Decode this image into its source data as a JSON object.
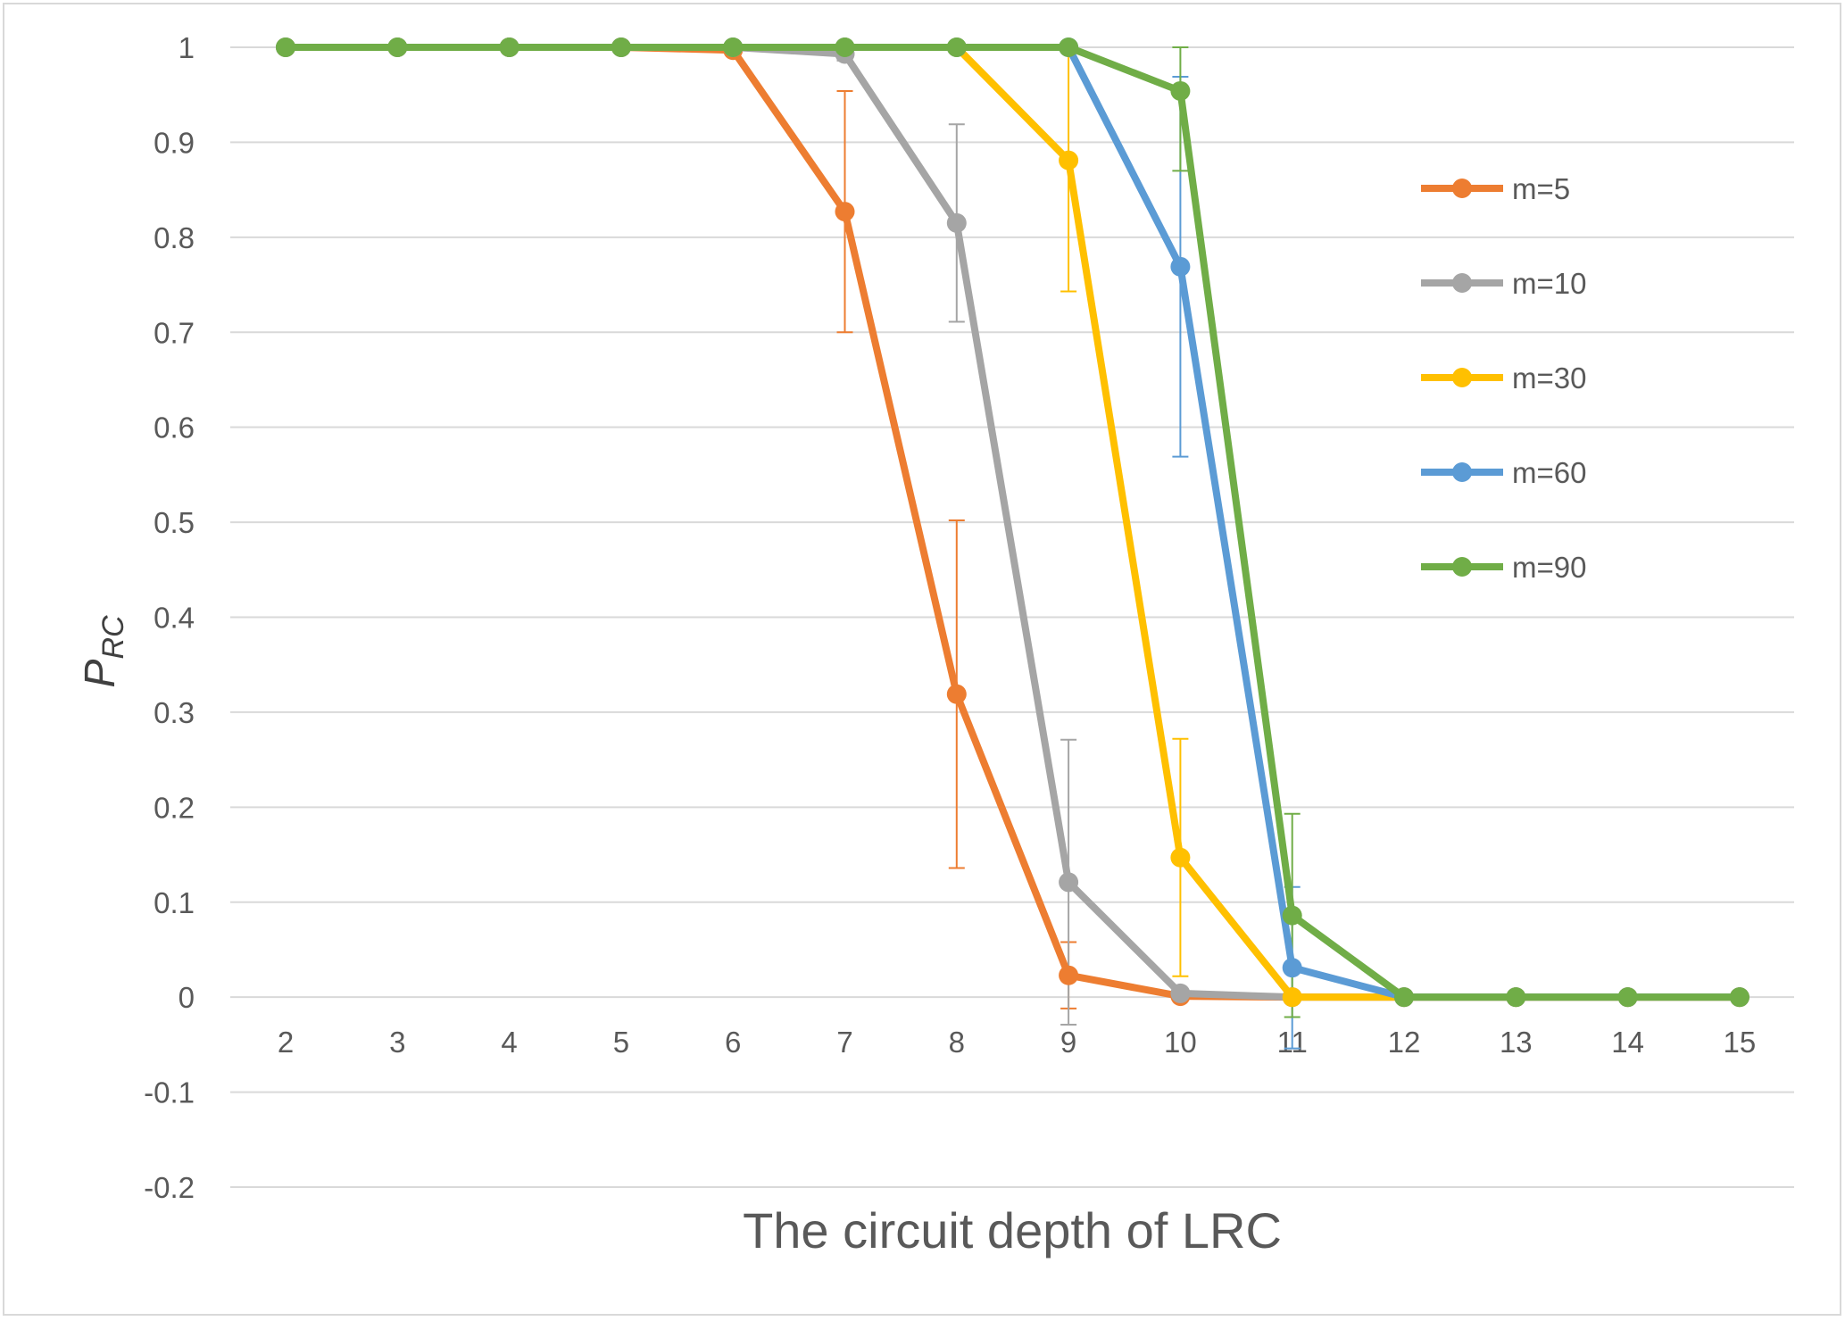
{
  "chart_data": {
    "type": "line",
    "title": "",
    "xlabel": "The circuit depth of LRC",
    "ylabel": {
      "main": "P",
      "sub": "RC"
    },
    "x": [
      2,
      3,
      4,
      5,
      6,
      7,
      8,
      9,
      10,
      11,
      12,
      13,
      14,
      15
    ],
    "xlim": [
      1.5,
      15.5
    ],
    "ylim": [
      -0.2,
      1.0
    ],
    "yticks": [
      "-0.2",
      "-0.1",
      "0",
      "0.1",
      "0.2",
      "0.3",
      "0.4",
      "0.5",
      "0.6",
      "0.7",
      "0.8",
      "0.9",
      "1"
    ],
    "ytick_values": [
      -0.2,
      -0.1,
      0,
      0.1,
      0.2,
      0.3,
      0.4,
      0.5,
      0.6,
      0.7,
      0.8,
      0.9,
      1.0
    ],
    "grid": true,
    "legend_position": "right",
    "series": [
      {
        "name": "m=5",
        "color": "#ED7D31",
        "values": [
          1,
          1,
          1,
          1,
          0.997,
          0.827,
          0.319,
          0.023,
          0.001,
          0,
          0,
          0,
          0,
          0
        ],
        "errors": [
          0,
          0,
          0,
          0,
          0,
          0.127,
          0.183,
          0.035,
          0,
          0,
          0,
          0,
          0,
          0
        ]
      },
      {
        "name": "m=10",
        "color": "#A5A5A5",
        "values": [
          1,
          1,
          1,
          1,
          1,
          0.993,
          0.815,
          0.121,
          0.004,
          0,
          0,
          0,
          0,
          0
        ],
        "errors": [
          0,
          0,
          0,
          0,
          0,
          0.007,
          0.104,
          0.15,
          0,
          0,
          0,
          0,
          0,
          0
        ]
      },
      {
        "name": "m=30",
        "color": "#FFC000",
        "values": [
          1,
          1,
          1,
          1,
          1,
          1,
          1,
          0.881,
          0.147,
          0,
          0,
          0,
          0,
          0
        ],
        "errors": [
          0,
          0,
          0,
          0,
          0,
          0,
          0,
          0.138,
          0.125,
          0,
          0,
          0,
          0,
          0
        ]
      },
      {
        "name": "m=60",
        "color": "#5B9BD5",
        "values": [
          1,
          1,
          1,
          1,
          1,
          1,
          1,
          1,
          0.769,
          0.031,
          0,
          0,
          0,
          0
        ],
        "errors": [
          0,
          0,
          0,
          0,
          0,
          0,
          0,
          0,
          0.2,
          0.085,
          0,
          0,
          0,
          0
        ]
      },
      {
        "name": "m=90",
        "color": "#70AD47",
        "values": [
          1,
          1,
          1,
          1,
          1,
          1,
          1,
          1,
          0.954,
          0.086,
          0,
          0,
          0,
          0
        ],
        "errors": [
          0,
          0,
          0,
          0,
          0,
          0,
          0,
          0,
          0.084,
          0.107,
          0,
          0,
          0,
          0
        ]
      }
    ]
  }
}
